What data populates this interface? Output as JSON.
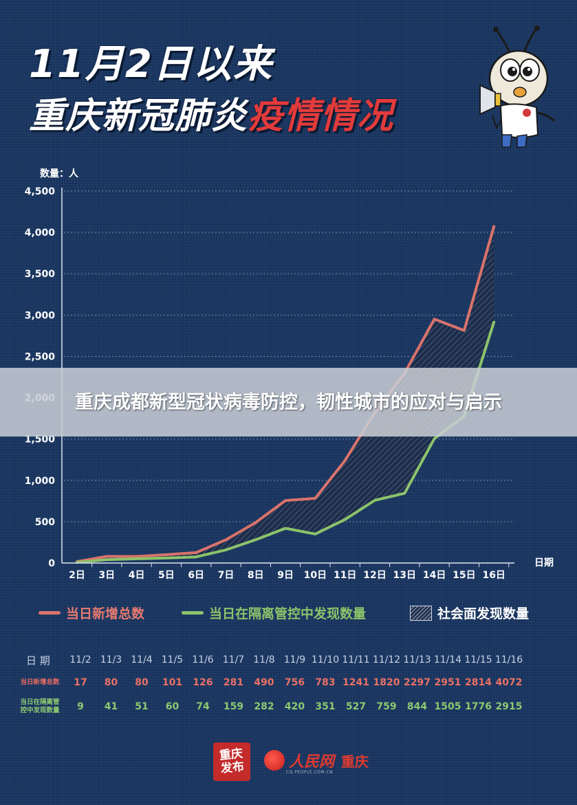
{
  "header": {
    "title_line1": "11月2日以来",
    "title_line2_white": "重庆新冠肺炎",
    "title_line2_red": "疫情情况"
  },
  "overlay": {
    "text": "重庆成都新型冠状病毒防控，韧性城市的应对与启示"
  },
  "chart_data": {
    "type": "line",
    "ylabel": "数量：人",
    "xlabel": "日期",
    "ylim": [
      0,
      4500
    ],
    "yticks": [
      0,
      500,
      1000,
      1500,
      2000,
      2500,
      3000,
      3500,
      4000,
      4500
    ],
    "ytick_labels": [
      "0",
      "500",
      "1,000",
      "1,500",
      "2,000",
      "2,500",
      "3,000",
      "3,500",
      "4,000",
      "4,500"
    ],
    "categories": [
      "2日",
      "3日",
      "4日",
      "5日",
      "6日",
      "7日",
      "8日",
      "9日",
      "10日",
      "11日",
      "12日",
      "13日",
      "14日",
      "15日",
      "16日"
    ],
    "series": [
      {
        "name": "当日新增总数",
        "color": "#d9736b",
        "values": [
          17,
          80,
          80,
          101,
          126,
          281,
          490,
          756,
          783,
          1241,
          1820,
          2297,
          2951,
          2814,
          4072
        ]
      },
      {
        "name": "当日在隔离管控中发现数量",
        "color": "#8cc36a",
        "values": [
          9,
          41,
          51,
          60,
          74,
          159,
          282,
          420,
          351,
          527,
          759,
          844,
          1505,
          1776,
          2915
        ]
      }
    ],
    "area_legend": "社会面发现数量",
    "grid": true,
    "legend_position": "bottom"
  },
  "table": {
    "date_header": "日 期",
    "new_header_l1": "当日新增总数",
    "iso_header_l1": "当日在隔离管",
    "iso_header_l2": "控中发现数量",
    "dates": [
      "11/2",
      "11/3",
      "11/4",
      "11/5",
      "11/6",
      "11/7",
      "11/8",
      "11/9",
      "11/10",
      "11/11",
      "11/12",
      "11/13",
      "11/14",
      "11/15",
      "11/16"
    ],
    "new_total": [
      "17",
      "80",
      "80",
      "101",
      "126",
      "281",
      "490",
      "756",
      "783",
      "1241",
      "1820",
      "2297",
      "2951",
      "2814",
      "4072"
    ],
    "isolation": [
      "9",
      "41",
      "51",
      "60",
      "74",
      "159",
      "282",
      "420",
      "351",
      "527",
      "759",
      "844",
      "1505",
      "1776",
      "2915"
    ]
  },
  "footer": {
    "seal_text_l1": "重庆",
    "seal_text_l2": "发布",
    "brand_name": "人民网",
    "brand_city": "重庆",
    "brand_sub": "CQ.PEOPLE.COM.CN"
  }
}
